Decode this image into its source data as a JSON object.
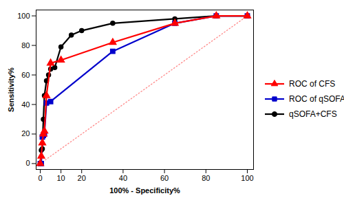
{
  "chart_data": {
    "type": "line",
    "xlabel": "100% - Specificity%",
    "ylabel": "Sensitivity%",
    "xlim": [
      -2,
      103
    ],
    "ylim": [
      -4,
      104
    ],
    "xticks": [
      0,
      10,
      20,
      40,
      60,
      80,
      100
    ],
    "yticks": [
      0,
      20,
      40,
      60,
      80,
      100
    ],
    "grid": false,
    "legend": "right",
    "series": [
      {
        "name": "ROC of CFS",
        "color": "#FF0000",
        "marker": "triangle",
        "line_style": "solid",
        "x": [
          0,
          0.5,
          1,
          1.5,
          2,
          3,
          5,
          10,
          35,
          65,
          85,
          100
        ],
        "values": [
          0,
          5,
          14,
          20,
          22,
          46,
          68,
          70,
          82,
          95,
          100,
          100
        ]
      },
      {
        "name": "ROC of qSOFA",
        "color": "#0000CC",
        "marker": "square",
        "line_style": "solid",
        "x": [
          0,
          0.5,
          1,
          1.5,
          2,
          3,
          5,
          35,
          65,
          85,
          100
        ],
        "values": [
          0,
          0,
          18,
          19,
          20,
          41,
          42,
          76,
          95,
          100,
          100
        ]
      },
      {
        "name": "qSOFA+CFS",
        "color": "#000000",
        "marker": "circle",
        "line_style": "solid",
        "x": [
          0,
          0.5,
          1,
          1.5,
          2,
          3,
          4,
          5,
          7,
          10,
          15,
          20,
          35,
          65,
          85,
          100
        ],
        "values": [
          0,
          9,
          10,
          30,
          46,
          56,
          60,
          64,
          65,
          79,
          87,
          90,
          95,
          98,
          100,
          100
        ]
      }
    ],
    "reference_line": {
      "x": [
        0,
        100
      ],
      "values": [
        0,
        100
      ],
      "color": "#FF8888",
      "line_style": "dotted"
    }
  }
}
